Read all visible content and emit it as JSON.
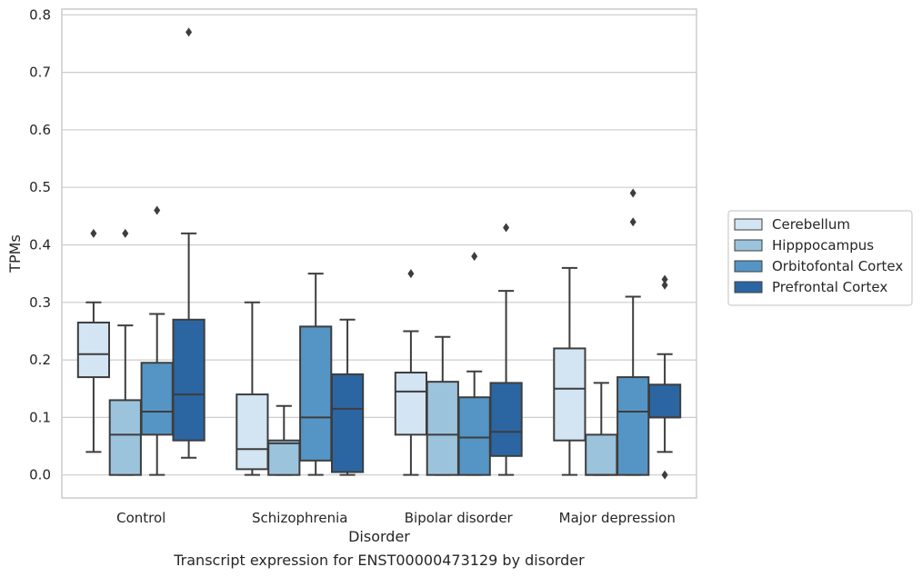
{
  "chart_data": {
    "type": "box",
    "caption": "Transcript expression for ENST00000473129 by disorder",
    "xlabel": "Disorder",
    "ylabel": "TPMs",
    "ylim": [
      -0.04,
      0.81
    ],
    "yticks": [
      "0.0",
      "0.1",
      "0.2",
      "0.3",
      "0.4",
      "0.5",
      "0.6",
      "0.7",
      "0.8"
    ],
    "ytick_values": [
      0,
      0.1,
      0.2,
      0.3,
      0.4,
      0.5,
      0.6,
      0.7,
      0.8
    ],
    "grid": "horizontal",
    "legend_placement": "center-right",
    "categories": [
      "Control",
      "Schizophrenia",
      "Bipolar disorder",
      "Major depression"
    ],
    "series": [
      {
        "name": "Cerebellum",
        "color": "#d3e4f3",
        "boxes": [
          {
            "whisker_low": 0.04,
            "q1": 0.17,
            "median": 0.21,
            "q3": 0.265,
            "whisker_high": 0.3,
            "outliers": [
              0.42
            ]
          },
          {
            "whisker_low": 0.0,
            "q1": 0.01,
            "median": 0.045,
            "q3": 0.14,
            "whisker_high": 0.3,
            "outliers": []
          },
          {
            "whisker_low": 0.0,
            "q1": 0.07,
            "median": 0.145,
            "q3": 0.178,
            "whisker_high": 0.25,
            "outliers": [
              0.35
            ]
          },
          {
            "whisker_low": 0.0,
            "q1": 0.06,
            "median": 0.15,
            "q3": 0.22,
            "whisker_high": 0.36,
            "outliers": []
          }
        ]
      },
      {
        "name": "Hipppocampus",
        "color": "#9cc3dc",
        "boxes": [
          {
            "whisker_low": 0.0,
            "q1": 0.0,
            "median": 0.07,
            "q3": 0.13,
            "whisker_high": 0.26,
            "outliers": [
              0.42
            ]
          },
          {
            "whisker_low": 0.0,
            "q1": 0.0,
            "median": 0.055,
            "q3": 0.06,
            "whisker_high": 0.12,
            "outliers": []
          },
          {
            "whisker_low": 0.0,
            "q1": 0.0,
            "median": 0.07,
            "q3": 0.162,
            "whisker_high": 0.24,
            "outliers": []
          },
          {
            "whisker_low": 0.0,
            "q1": 0.0,
            "median": 0.0,
            "q3": 0.07,
            "whisker_high": 0.16,
            "outliers": []
          }
        ]
      },
      {
        "name": "Orbitofontal Cortex",
        "color": "#5595c5",
        "boxes": [
          {
            "whisker_low": 0.0,
            "q1": 0.07,
            "median": 0.11,
            "q3": 0.195,
            "whisker_high": 0.28,
            "outliers": [
              0.46
            ]
          },
          {
            "whisker_low": 0.0,
            "q1": 0.025,
            "median": 0.1,
            "q3": 0.258,
            "whisker_high": 0.35,
            "outliers": []
          },
          {
            "whisker_low": 0.0,
            "q1": 0.0,
            "median": 0.065,
            "q3": 0.135,
            "whisker_high": 0.18,
            "outliers": [
              0.38
            ]
          },
          {
            "whisker_low": 0.0,
            "q1": 0.0,
            "median": 0.11,
            "q3": 0.17,
            "whisker_high": 0.31,
            "outliers": [
              0.44,
              0.49
            ]
          }
        ]
      },
      {
        "name": "Prefrontal Cortex",
        "color": "#2b66a3",
        "boxes": [
          {
            "whisker_low": 0.03,
            "q1": 0.06,
            "median": 0.14,
            "q3": 0.27,
            "whisker_high": 0.42,
            "outliers": [
              0.77
            ]
          },
          {
            "whisker_low": 0.0,
            "q1": 0.005,
            "median": 0.115,
            "q3": 0.175,
            "whisker_high": 0.27,
            "outliers": []
          },
          {
            "whisker_low": 0.0,
            "q1": 0.033,
            "median": 0.075,
            "q3": 0.16,
            "whisker_high": 0.32,
            "outliers": [
              0.43
            ]
          },
          {
            "whisker_low": 0.04,
            "q1": 0.1,
            "median": 0.1,
            "q3": 0.157,
            "whisker_high": 0.21,
            "outliers": [
              0.33,
              0.34,
              0.0
            ]
          }
        ]
      }
    ]
  }
}
